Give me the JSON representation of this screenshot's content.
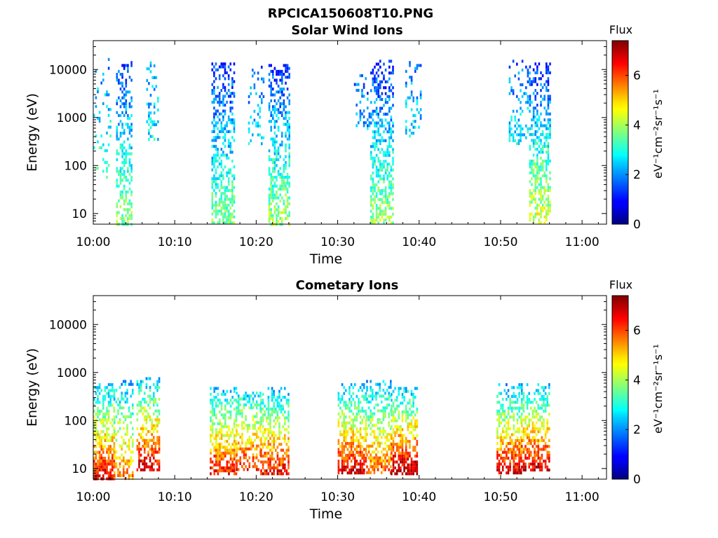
{
  "page_title": "RPCICA150608T10.PNG",
  "chart_data": [
    {
      "type": "heatmap",
      "title": "Solar Wind Ions",
      "xlabel": "Time",
      "ylabel": "Energy (eV)",
      "x_ticks": [
        "10:00",
        "10:10",
        "10:20",
        "10:30",
        "10:40",
        "10:50",
        "11:00"
      ],
      "x_range_minutes": [
        0,
        63
      ],
      "y_scale": "log",
      "y_ticks": [
        "10",
        "100",
        "1000",
        "10000"
      ],
      "y_range": [
        6,
        40000
      ],
      "colorbar": {
        "label": "Flux",
        "units": "eV⁻¹cm⁻²sr⁻¹s⁻¹",
        "ticks": [
          "0",
          "2",
          "4",
          "6"
        ],
        "range": [
          0,
          7.4
        ],
        "colormap": "jet"
      },
      "bursts": [
        {
          "t_start": 0.0,
          "t_end": 2.2,
          "e_low": 60,
          "e_high": 20000,
          "flux_low": 3.6,
          "flux_high": 1.6,
          "density": 0.18
        },
        {
          "t_start": 2.8,
          "t_end": 4.8,
          "e_low": 6,
          "e_high": 15000,
          "flux_low": 3.8,
          "flux_high": 1.4,
          "density": 0.55
        },
        {
          "t_start": 6.5,
          "t_end": 8.0,
          "e_low": 350,
          "e_high": 17000,
          "flux_low": 2.8,
          "flux_high": 1.8,
          "density": 0.3
        },
        {
          "t_start": 14.5,
          "t_end": 17.2,
          "e_low": 6,
          "e_high": 14000,
          "flux_low": 3.7,
          "flux_high": 1.2,
          "density": 0.6
        },
        {
          "t_start": 19.0,
          "t_end": 20.8,
          "e_low": 300,
          "e_high": 12000,
          "flux_low": 2.6,
          "flux_high": 1.5,
          "density": 0.25
        },
        {
          "t_start": 21.5,
          "t_end": 24.0,
          "e_low": 6,
          "e_high": 13000,
          "flux_low": 4.0,
          "flux_high": 1.2,
          "density": 0.6
        },
        {
          "t_start": 32.0,
          "t_end": 34.0,
          "e_low": 600,
          "e_high": 8000,
          "flux_low": 2.2,
          "flux_high": 1.6,
          "density": 0.2
        },
        {
          "t_start": 34.0,
          "t_end": 36.8,
          "e_low": 6,
          "e_high": 16000,
          "flux_low": 4.0,
          "flux_high": 1.1,
          "density": 0.6
        },
        {
          "t_start": 38.3,
          "t_end": 40.3,
          "e_low": 400,
          "e_high": 15000,
          "flux_low": 2.6,
          "flux_high": 1.7,
          "density": 0.25
        },
        {
          "t_start": 51.0,
          "t_end": 53.5,
          "e_low": 300,
          "e_high": 16000,
          "flux_low": 2.8,
          "flux_high": 1.5,
          "density": 0.3
        },
        {
          "t_start": 53.5,
          "t_end": 56.0,
          "e_low": 6,
          "e_high": 14000,
          "flux_low": 4.5,
          "flux_high": 1.2,
          "density": 0.6
        }
      ]
    },
    {
      "type": "heatmap",
      "title": "Cometary Ions",
      "xlabel": "Time",
      "ylabel": "Energy (eV)",
      "x_ticks": [
        "10:00",
        "10:10",
        "10:20",
        "10:30",
        "10:40",
        "10:50",
        "11:00"
      ],
      "x_range_minutes": [
        0,
        63
      ],
      "y_scale": "log",
      "y_ticks": [
        "10",
        "100",
        "1000",
        "10000"
      ],
      "y_range": [
        6,
        40000
      ],
      "colorbar": {
        "label": "Flux",
        "units": "eV⁻¹cm⁻²sr⁻¹s⁻¹",
        "ticks": [
          "0",
          "2",
          "4",
          "6"
        ],
        "range": [
          0,
          7.4
        ],
        "colormap": "jet"
      },
      "bursts": [
        {
          "t_start": 0.0,
          "t_end": 2.5,
          "e_low": 6,
          "e_high": 600,
          "flux_low": 6.8,
          "flux_high": 2.4,
          "density": 0.75
        },
        {
          "t_start": 2.5,
          "t_end": 4.8,
          "e_low": 6,
          "e_high": 700,
          "flux_low": 5.8,
          "flux_high": 2.2,
          "density": 0.55
        },
        {
          "t_start": 5.3,
          "t_end": 8.0,
          "e_low": 10,
          "e_high": 800,
          "flux_low": 6.8,
          "flux_high": 2.4,
          "density": 0.6
        },
        {
          "t_start": 14.3,
          "t_end": 17.5,
          "e_low": 8,
          "e_high": 500,
          "flux_low": 6.5,
          "flux_high": 2.3,
          "density": 0.7
        },
        {
          "t_start": 17.5,
          "t_end": 20.5,
          "e_low": 10,
          "e_high": 400,
          "flux_low": 6.4,
          "flux_high": 2.6,
          "density": 0.6
        },
        {
          "t_start": 20.5,
          "t_end": 24.0,
          "e_low": 8,
          "e_high": 500,
          "flux_low": 6.6,
          "flux_high": 2.3,
          "density": 0.65
        },
        {
          "t_start": 30.0,
          "t_end": 33.5,
          "e_low": 8,
          "e_high": 600,
          "flux_low": 6.9,
          "flux_high": 2.2,
          "density": 0.7
        },
        {
          "t_start": 33.5,
          "t_end": 36.5,
          "e_low": 8,
          "e_high": 700,
          "flux_low": 6.0,
          "flux_high": 2.3,
          "density": 0.6
        },
        {
          "t_start": 36.5,
          "t_end": 39.8,
          "e_low": 8,
          "e_high": 500,
          "flux_low": 7.2,
          "flux_high": 2.4,
          "density": 0.7
        },
        {
          "t_start": 49.5,
          "t_end": 52.5,
          "e_low": 8,
          "e_high": 600,
          "flux_low": 6.8,
          "flux_high": 2.2,
          "density": 0.7
        },
        {
          "t_start": 52.5,
          "t_end": 56.0,
          "e_low": 10,
          "e_high": 600,
          "flux_low": 6.9,
          "flux_high": 2.3,
          "density": 0.65
        }
      ]
    }
  ]
}
